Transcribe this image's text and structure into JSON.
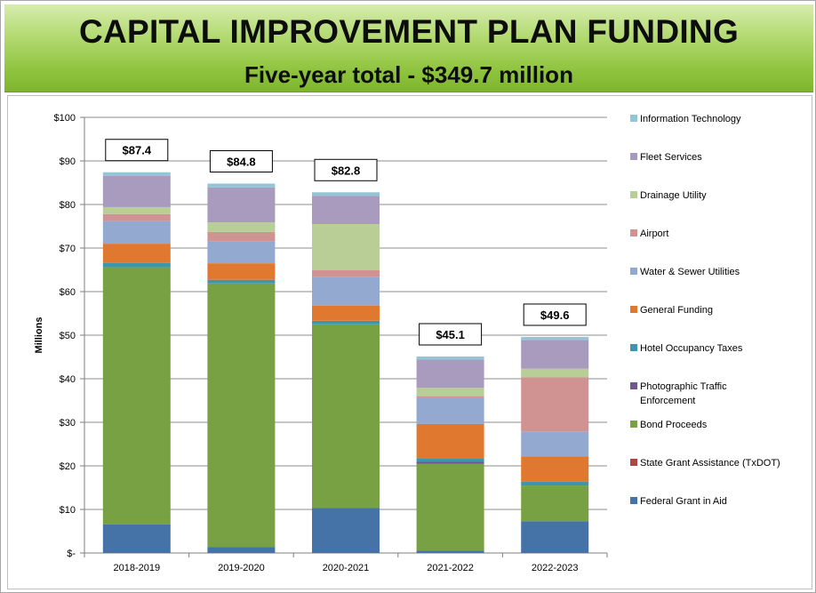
{
  "title": "CAPITAL IMPROVEMENT PLAN FUNDING",
  "subtitle": "Five-year total - $349.7 million",
  "chart_data": {
    "type": "bar",
    "stacked": true,
    "categories": [
      "2018-2019",
      "2019-2020",
      "2020-2021",
      "2021-2022",
      "2022-2023"
    ],
    "ylabel": "Millions",
    "ylim": [
      0,
      100
    ],
    "yticks": [
      0,
      10,
      20,
      30,
      40,
      50,
      60,
      70,
      80,
      90,
      100
    ],
    "ytick_labels": [
      "$-",
      "$10",
      "$20",
      "$30",
      "$40",
      "$50",
      "$60",
      "$70",
      "$80",
      "$90",
      "$100"
    ],
    "grid": true,
    "legend_position": "right",
    "totals": [
      "$87.4",
      "$84.8",
      "$82.8",
      "$45.1",
      "$49.6"
    ],
    "series": [
      {
        "name": "Federal Grant in Aid",
        "color": "#4572a7",
        "values": [
          6.6,
          1.4,
          10.3,
          0.5,
          7.3
        ]
      },
      {
        "name": "State Grant Assistance (TxDOT)",
        "color": "#aa4643",
        "values": [
          0.0,
          0.0,
          0.0,
          0.0,
          0.0
        ]
      },
      {
        "name": "Bond Proceeds",
        "color": "#77a142",
        "values": [
          59.0,
          60.5,
          42.2,
          20.0,
          8.2
        ]
      },
      {
        "name": "Photographic Traffic Enforcement",
        "color": "#71588f",
        "values": [
          0.0,
          0.0,
          0.0,
          0.5,
          0.0
        ]
      },
      {
        "name": "Hotel Occupancy Taxes",
        "color": "#3d96ae",
        "values": [
          1.0,
          0.8,
          0.8,
          0.8,
          0.9
        ]
      },
      {
        "name": "General Funding",
        "color": "#e0792f",
        "values": [
          4.4,
          3.8,
          3.5,
          7.8,
          5.8
        ]
      },
      {
        "name": "Water & Sewer Utilities",
        "color": "#93a9cf",
        "values": [
          5.2,
          5.1,
          6.6,
          6.0,
          5.7
        ]
      },
      {
        "name": "Airport",
        "color": "#d19392",
        "values": [
          1.6,
          2.1,
          1.5,
          0.4,
          12.4
        ]
      },
      {
        "name": "Drainage Utility",
        "color": "#b9cd96",
        "values": [
          1.6,
          2.2,
          10.6,
          1.9,
          2.0
        ]
      },
      {
        "name": "Fleet Services",
        "color": "#a99bbd",
        "values": [
          7.2,
          8.0,
          6.5,
          6.5,
          6.6
        ]
      },
      {
        "name": "Information Technology",
        "color": "#92c5d6",
        "values": [
          0.8,
          0.9,
          0.8,
          0.7,
          0.7
        ]
      }
    ]
  }
}
